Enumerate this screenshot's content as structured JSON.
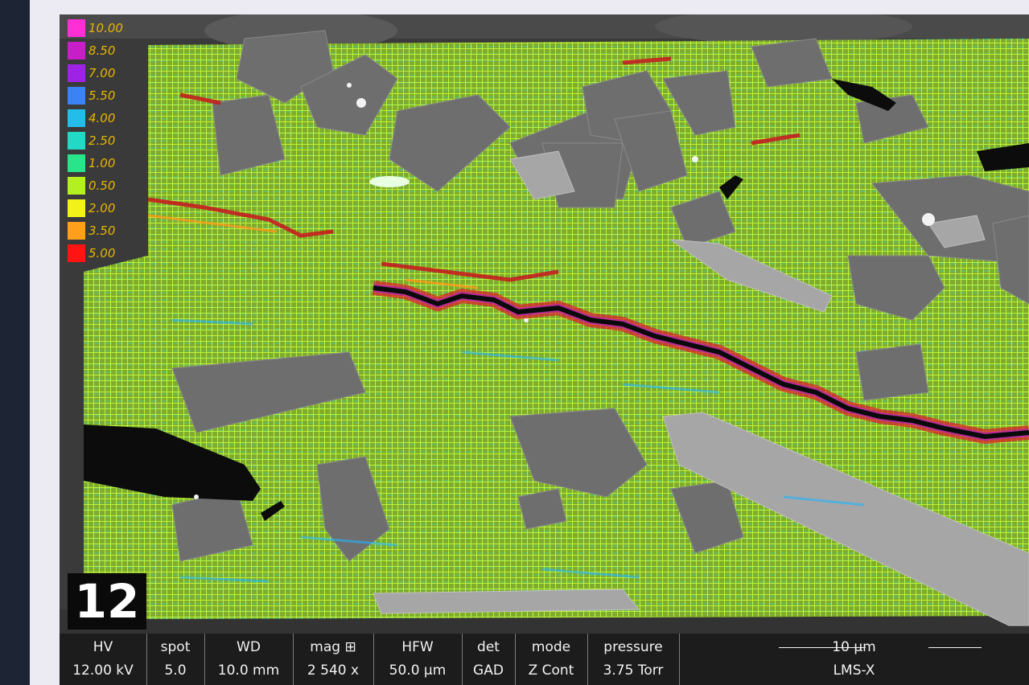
{
  "panel_number": "12",
  "legend": {
    "values": [
      "10.00",
      "8.50",
      "7.00",
      "5.50",
      "4.00",
      "2.50",
      "1.00",
      "0.50",
      "2.00",
      "3.50",
      "5.00"
    ],
    "colors": [
      "#ff2fd6",
      "#c81ec8",
      "#9f23e6",
      "#3b82f6",
      "#22bde8",
      "#22d9c6",
      "#28e48a",
      "#b4f020",
      "#f2f21a",
      "#ff9f1a",
      "#ff1414"
    ]
  },
  "databar": {
    "hv": {
      "label": "HV",
      "value": "12.00 kV"
    },
    "spot": {
      "label": "spot",
      "value": "5.0"
    },
    "wd": {
      "label": "WD",
      "value": "10.0 mm"
    },
    "mag": {
      "label": "mag ⊞",
      "value": "2 540 x"
    },
    "hfw": {
      "label": "HFW",
      "value": "50.0 µm"
    },
    "det": {
      "label": "det",
      "value": "GAD"
    },
    "mode": {
      "label": "mode",
      "value": "Z Cont"
    },
    "pressure": {
      "label": "pressure",
      "value": "3.75 Torr"
    },
    "scalebar": {
      "label": "10 µm",
      "value": "LMS-X"
    }
  }
}
